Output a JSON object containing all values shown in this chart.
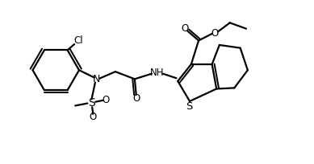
{
  "background_color": "#ffffff",
  "line_color": "#000000",
  "line_width": 1.6,
  "font_size": 8.5,
  "figsize": [
    3.89,
    2.04
  ],
  "dpi": 100,
  "xlim": [
    0,
    10.5
  ],
  "ylim": [
    0,
    5.5
  ]
}
